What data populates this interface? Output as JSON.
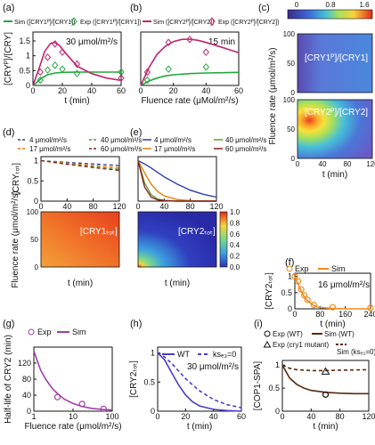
{
  "colors": {
    "cry1_sim": "#22a83c",
    "cry2_sim": "#c0246e",
    "exp": "#a03fa8",
    "orange": "#f08a1a",
    "wt": "#4b3ccb",
    "dark": "#5a2a0c",
    "c4": "#2b3fae",
    "c17": "#e0800c",
    "c40": "#5aa02c",
    "c60": "#8a1f1f"
  },
  "panel_labels": [
    "(a)",
    "(b)",
    "(c)",
    "(d)",
    "(e)",
    "(f)",
    "(g)",
    "(h)",
    "(i)"
  ],
  "legend_ab": [
    {
      "label": "Sim ([CRY1ᴾ]/[CRY1])",
      "style": "line",
      "color": "#22a83c"
    },
    {
      "label": "Exp ([CRY1ᴾ]/[CRY1])",
      "style": "diamond",
      "color": "#22a83c"
    },
    {
      "label": "Sim ([CRY2ᴾ]/[CRY2])",
      "style": "line",
      "color": "#c0246e"
    },
    {
      "label": "Exp ([CRY2ᴾ]/[CRY2])",
      "style": "diamond",
      "color": "#c0246e"
    }
  ],
  "legend_de": [
    {
      "label": "4  μmol/m²/s",
      "color": "#2b3fae"
    },
    {
      "label": "40 μmol/m²/s",
      "color": "#5aa02c"
    },
    {
      "label": "17 μmol/m²/s",
      "color": "#e0800c"
    },
    {
      "label": "60 μmol/m²/s",
      "color": "#8a1f1f"
    }
  ],
  "chart_data": [
    {
      "id": "a",
      "type": "line",
      "xlabel": "t (min)",
      "ylabel": "[CRYᴾ]/[CRY]",
      "annotation": "30 μmol/m²/s",
      "xlim": [
        0,
        60
      ],
      "ylim": [
        0,
        1.8
      ],
      "xticks": [
        0,
        20,
        40,
        60
      ],
      "yticks": [
        0,
        0.5,
        1.0,
        1.5
      ],
      "series": [
        {
          "name": "Sim ([CRY1ᴾ]/[CRY1])",
          "kind": "sim",
          "x": [
            0,
            3,
            6,
            10,
            15,
            20,
            30,
            40,
            60
          ],
          "y": [
            0,
            0.12,
            0.25,
            0.36,
            0.42,
            0.44,
            0.45,
            0.45,
            0.45
          ]
        },
        {
          "name": "Exp ([CRY1ᴾ]/[CRY1])",
          "kind": "exp",
          "x": [
            5,
            10,
            15,
            20,
            30,
            60
          ],
          "y": [
            0.18,
            0.52,
            0.68,
            0.55,
            0.4,
            0.45
          ]
        },
        {
          "name": "Sim ([CRY2ᴾ]/[CRY2])",
          "kind": "sim",
          "x": [
            0,
            4,
            8,
            12,
            15,
            18,
            22,
            30,
            40,
            50,
            60
          ],
          "y": [
            0,
            0.55,
            1.15,
            1.42,
            1.45,
            1.35,
            1.1,
            0.65,
            0.4,
            0.25,
            0.17
          ]
        },
        {
          "name": "Exp ([CRY2ᴾ]/[CRY2])",
          "kind": "exp",
          "x": [
            5,
            10,
            15,
            20,
            30,
            60
          ],
          "y": [
            0.45,
            0.95,
            1.4,
            1.12,
            0.72,
            0.25
          ]
        }
      ]
    },
    {
      "id": "b",
      "type": "line",
      "xlabel": "Fluence rate (μMol/m²/s)",
      "ylabel": "",
      "annotation": "15 min",
      "xlim": [
        0,
        60
      ],
      "ylim": [
        0,
        1.8
      ],
      "xticks": [
        0,
        20,
        40,
        60
      ],
      "yticks": [
        0,
        0.5,
        1.0,
        1.5
      ],
      "series": [
        {
          "name": "Sim ([CRY1ᴾ]/[CRY1])",
          "kind": "sim",
          "x": [
            0,
            5,
            10,
            15,
            20,
            30,
            40,
            50,
            60
          ],
          "y": [
            0,
            0.15,
            0.25,
            0.32,
            0.36,
            0.4,
            0.42,
            0.43,
            0.44
          ]
        },
        {
          "name": "Exp ([CRY1ᴾ]/[CRY1])",
          "kind": "exp",
          "x": [
            4,
            17,
            40
          ],
          "y": [
            0.18,
            0.55,
            0.62
          ]
        },
        {
          "name": "Sim ([CRY2ᴾ]/[CRY2])",
          "kind": "sim",
          "x": [
            0,
            5,
            10,
            15,
            20,
            25,
            30,
            35,
            40,
            50,
            60
          ],
          "y": [
            0,
            0.6,
            1.05,
            1.32,
            1.48,
            1.55,
            1.56,
            1.52,
            1.45,
            1.28,
            1.1
          ]
        },
        {
          "name": "Exp ([CRY2ᴾ]/[CRY2])",
          "kind": "exp",
          "x": [
            4,
            17,
            30,
            40
          ],
          "y": [
            0.45,
            1.45,
            1.55,
            1.12
          ]
        }
      ]
    },
    {
      "id": "c",
      "type": "heatmap",
      "xlabel": "t (min)",
      "ylabel": "Fluence rate (μmol/m²/s)",
      "xlim": [
        0,
        120
      ],
      "ylim": [
        0,
        100
      ],
      "xticks": [
        0,
        40,
        80,
        120
      ],
      "yticks": [
        0,
        50,
        100
      ],
      "colorbar": {
        "min": 0,
        "mid": 0.8,
        "max": 1.6,
        "ticks": [
          "0",
          "0.8",
          "1.6"
        ]
      },
      "maps": [
        {
          "title": "[CRY1ᴾ]/[CRY1]",
          "description_value_range": [
            0,
            0.5
          ]
        },
        {
          "title": "[CRY2ᴾ]/[CRY2]",
          "description_value_range": [
            0,
            1.6
          ],
          "peak": {
            "t": 20,
            "fluence": 30
          }
        }
      ]
    },
    {
      "id": "d",
      "type": "line",
      "ylabel": "[CRYₜₒₜ]",
      "xlabel": "t (min)",
      "xlim": [
        0,
        120
      ],
      "ylim": [
        0,
        1.1
      ],
      "xticks": [
        0,
        40,
        80,
        120
      ],
      "yticks": [
        0,
        0.5,
        1.0
      ],
      "series": [
        {
          "name": "4 μmol/m²/s",
          "x": [
            0,
            40,
            80,
            120
          ],
          "y": [
            1.0,
            0.96,
            0.92,
            0.88
          ]
        },
        {
          "name": "17 μmol/m²/s",
          "x": [
            0,
            40,
            80,
            120
          ],
          "y": [
            1.0,
            0.94,
            0.88,
            0.83
          ]
        },
        {
          "name": "40 μmol/m²/s",
          "x": [
            0,
            40,
            80,
            120
          ],
          "y": [
            1.0,
            0.92,
            0.85,
            0.79
          ]
        },
        {
          "name": "60 μmol/m²/s",
          "x": [
            0,
            40,
            80,
            120
          ],
          "y": [
            1.0,
            0.91,
            0.83,
            0.76
          ]
        }
      ],
      "heatmap": {
        "title": "[CRY1ₜₒₜ]",
        "ylabel": "Fluence rate (μmol/m²/s)",
        "yticks": [
          0,
          50,
          100
        ]
      }
    },
    {
      "id": "e",
      "type": "line",
      "xlabel": "t (min)",
      "xlim": [
        0,
        120
      ],
      "ylim": [
        0,
        1.1
      ],
      "xticks": [
        0,
        40,
        80,
        120
      ],
      "series": [
        {
          "name": "4 μmol/m²/s",
          "x": [
            0,
            10,
            20,
            30,
            40,
            60,
            80,
            100,
            120
          ],
          "y": [
            1.0,
            0.92,
            0.82,
            0.71,
            0.6,
            0.42,
            0.27,
            0.17,
            0.1
          ]
        },
        {
          "name": "17 μmol/m²/s",
          "x": [
            0,
            10,
            20,
            30,
            40,
            60,
            80,
            120
          ],
          "y": [
            1.0,
            0.7,
            0.42,
            0.24,
            0.13,
            0.04,
            0.01,
            0.0
          ]
        },
        {
          "name": "40 μmol/m²/s",
          "x": [
            0,
            10,
            20,
            30,
            40,
            60,
            120
          ],
          "y": [
            1.0,
            0.45,
            0.16,
            0.05,
            0.02,
            0.0,
            0.0
          ]
        },
        {
          "name": "60 μmol/m²/s",
          "x": [
            0,
            10,
            20,
            30,
            40,
            60,
            120
          ],
          "y": [
            1.0,
            0.35,
            0.1,
            0.03,
            0.01,
            0.0,
            0.0
          ]
        }
      ],
      "heatmap": {
        "title": "[CRY2ₜₒₜ]",
        "colorbar": {
          "min": 0,
          "max": 1.0,
          "ticks": [
            "0.0",
            "0.2",
            "0.4",
            "0.6",
            "0.8",
            "1.0"
          ]
        }
      }
    },
    {
      "id": "f",
      "type": "line",
      "xlabel": "t (min)",
      "ylabel": "[CRY2ₜₒₜ]",
      "annotation": "16 μmol/m²/s",
      "legend": [
        "Exp",
        "Sim"
      ],
      "xlim": [
        0,
        240
      ],
      "ylim": [
        0,
        1.1
      ],
      "xticks": [
        0,
        80,
        160,
        240
      ],
      "yticks": [
        0,
        0.5,
        1.0
      ],
      "series": [
        {
          "name": "Sim",
          "kind": "sim",
          "x": [
            0,
            10,
            20,
            30,
            40,
            60,
            80,
            120,
            160,
            240
          ],
          "y": [
            1.0,
            0.78,
            0.55,
            0.38,
            0.25,
            0.1,
            0.04,
            0.01,
            0.0,
            0.0
          ]
        },
        {
          "name": "Exp",
          "kind": "exp",
          "x": [
            0,
            10,
            20,
            30,
            40,
            60,
            120,
            240
          ],
          "y": [
            1.0,
            0.85,
            0.6,
            0.42,
            0.28,
            0.12,
            0.05,
            0.03
          ]
        }
      ]
    },
    {
      "id": "g",
      "type": "line",
      "xlabel": "Fluence rate  (μmol/m²/s)",
      "ylabel": "Half-life of CRY2 (min)",
      "legend": [
        "Exp",
        "Sim"
      ],
      "xscale": "log",
      "xlim": [
        1,
        100
      ],
      "ylim": [
        0,
        160
      ],
      "xticks": [
        1,
        10,
        100
      ],
      "yticks": [
        0,
        40,
        80,
        120
      ],
      "series": [
        {
          "name": "Sim",
          "kind": "sim",
          "x": [
            1,
            1.5,
            2,
            3,
            4,
            6,
            10,
            17,
            30,
            60,
            100
          ],
          "y": [
            150,
            102,
            80,
            56,
            44,
            30,
            19,
            12,
            7,
            4,
            3
          ]
        },
        {
          "name": "Exp",
          "kind": "exp",
          "x": [
            4,
            17,
            60
          ],
          "y": [
            35,
            18,
            6
          ]
        }
      ]
    },
    {
      "id": "h",
      "type": "line",
      "xlabel": "t (min)",
      "ylabel": "[CRY2ₜₒₜ]",
      "annotation": "30 μmol/m²/s",
      "legend": [
        "WT",
        "ksₑ₃=0"
      ],
      "xlim": [
        0,
        60
      ],
      "ylim": [
        0,
        1.1
      ],
      "xticks": [
        0,
        20,
        40,
        60
      ],
      "yticks": [
        0,
        0.5,
        1.0
      ],
      "series": [
        {
          "name": "WT",
          "style": "solid",
          "x": [
            0,
            5,
            10,
            15,
            20,
            25,
            30,
            40,
            50,
            60
          ],
          "y": [
            1.0,
            0.88,
            0.66,
            0.45,
            0.28,
            0.16,
            0.09,
            0.03,
            0.01,
            0.0
          ]
        },
        {
          "name": "ksₑ₃=0",
          "style": "dashed",
          "x": [
            0,
            5,
            10,
            15,
            20,
            25,
            30,
            40,
            50,
            60
          ],
          "y": [
            1.0,
            0.93,
            0.82,
            0.69,
            0.56,
            0.45,
            0.35,
            0.2,
            0.11,
            0.06
          ]
        }
      ]
    },
    {
      "id": "i",
      "type": "line",
      "xlabel": "t (min)",
      "ylabel": "[COP1-SPA]",
      "legend": [
        "Exp (WT)",
        "Sim (WT)",
        "Exp (cry1 mutant)",
        "Sim (ksₑ₁=0)"
      ],
      "xlim": [
        0,
        120
      ],
      "ylim": [
        0,
        1.1
      ],
      "xticks": [
        0,
        40,
        80,
        120
      ],
      "yticks": [
        0,
        0.5,
        1.0
      ],
      "series": [
        {
          "name": "Sim (WT)",
          "kind": "sim",
          "style": "solid",
          "x": [
            0,
            10,
            20,
            30,
            40,
            60,
            80,
            100,
            120
          ],
          "y": [
            1.0,
            0.72,
            0.58,
            0.5,
            0.45,
            0.41,
            0.39,
            0.38,
            0.38
          ]
        },
        {
          "name": "Sim (ksₑ₁=0)",
          "kind": "sim",
          "style": "dashed",
          "x": [
            0,
            10,
            20,
            40,
            60,
            80,
            120
          ],
          "y": [
            1.0,
            0.93,
            0.9,
            0.88,
            0.88,
            0.89,
            0.9
          ]
        },
        {
          "name": "Exp (WT)",
          "kind": "exp",
          "marker": "circle",
          "x": [
            60
          ],
          "y": [
            0.36
          ]
        },
        {
          "name": "Exp (cry1 mutant)",
          "kind": "exp",
          "marker": "triangle",
          "x": [
            60
          ],
          "y": [
            0.86
          ]
        }
      ]
    }
  ]
}
